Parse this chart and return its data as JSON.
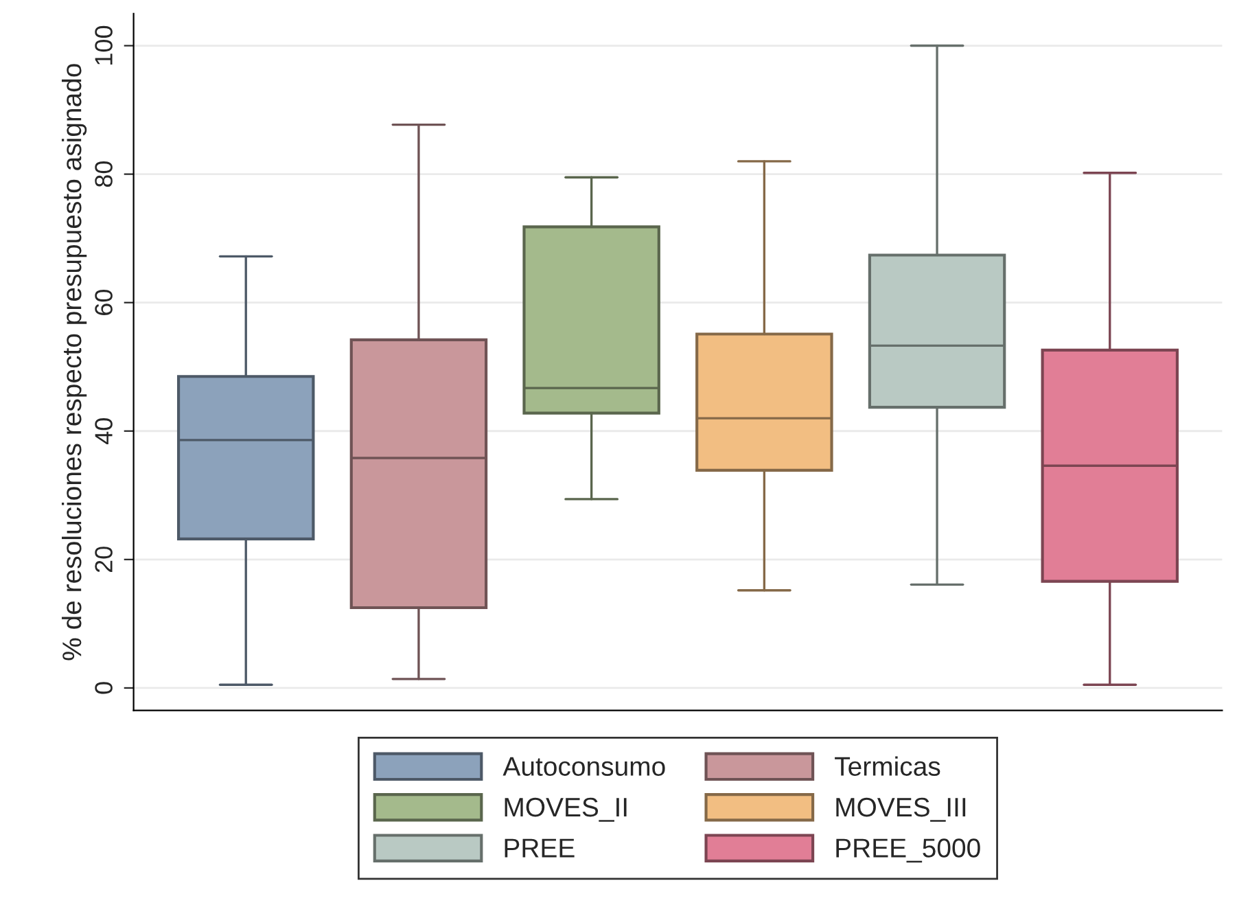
{
  "chart_data": {
    "type": "box",
    "ylabel": "% de resoluciones respecto presupuesto asignado",
    "categories": [
      null
    ],
    "ylim": [
      -3.5,
      105
    ],
    "yticks": [
      0,
      20,
      40,
      60,
      80,
      100
    ],
    "grid": "y",
    "legend": "bottom",
    "series": [
      {
        "name": "Autoconsumo",
        "color": "#8ca2bb",
        "boxes": [
          {
            "low": 0.5,
            "q1": 23.2,
            "median": 38.6,
            "q3": 48.5,
            "high": 67.2
          }
        ]
      },
      {
        "name": "Termicas",
        "color": "#c9979b",
        "boxes": [
          {
            "low": 1.4,
            "q1": 12.5,
            "median": 35.8,
            "q3": 54.2,
            "high": 87.7
          }
        ]
      },
      {
        "name": "MOVES_II",
        "color": "#a4ba8c",
        "boxes": [
          {
            "low": 29.4,
            "q1": 42.8,
            "median": 46.7,
            "q3": 71.8,
            "high": 79.5
          }
        ]
      },
      {
        "name": "MOVES_III",
        "color": "#f2be82",
        "boxes": [
          {
            "low": 15.2,
            "q1": 33.9,
            "median": 42,
            "q3": 55.1,
            "high": 82
          }
        ]
      },
      {
        "name": "PREE",
        "color": "#b9c9c3",
        "boxes": [
          {
            "low": 16.1,
            "q1": 43.7,
            "median": 53.3,
            "q3": 67.4,
            "high": 100
          }
        ]
      },
      {
        "name": "PREE_5000",
        "color": "#e17e96",
        "boxes": [
          {
            "low": 0.5,
            "q1": 16.6,
            "median": 34.6,
            "q3": 52.6,
            "high": 80.2
          }
        ]
      }
    ]
  }
}
